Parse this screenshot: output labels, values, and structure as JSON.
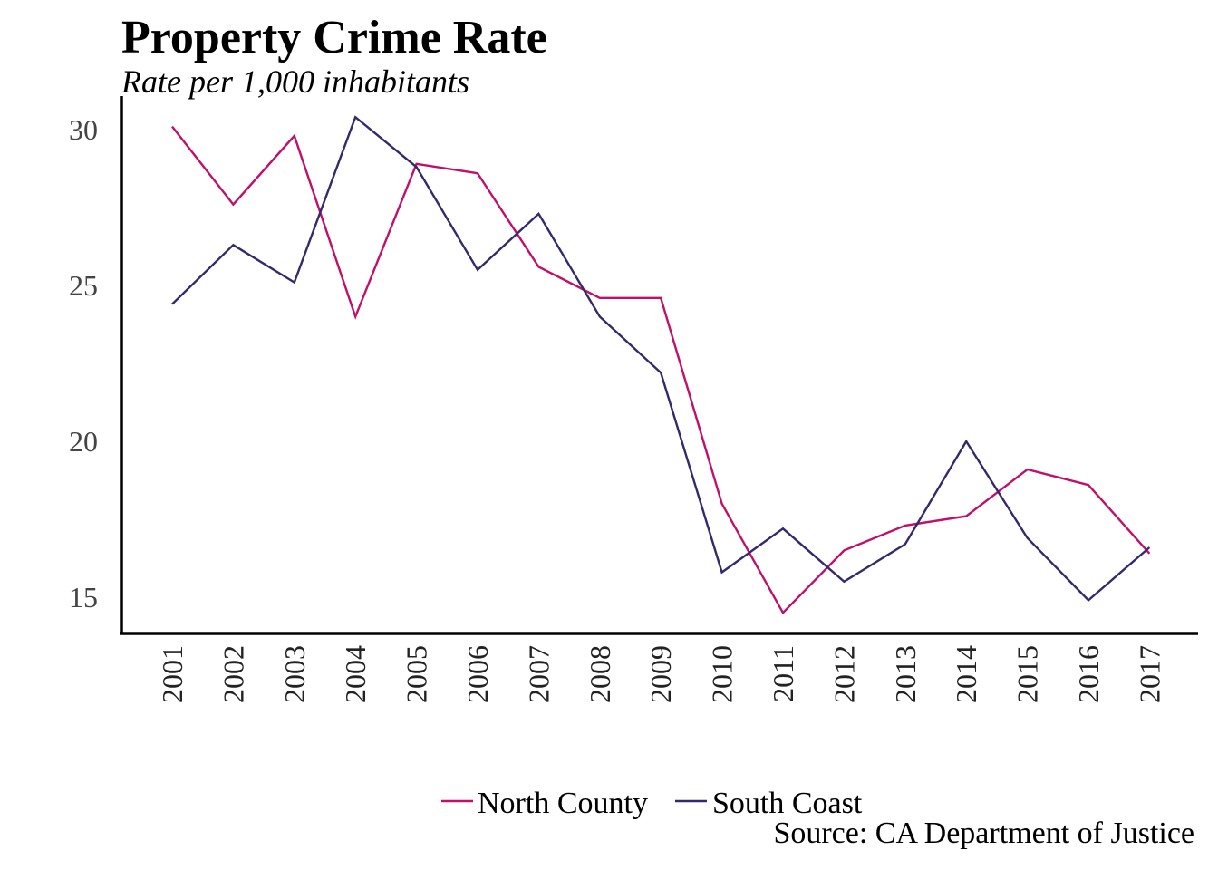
{
  "chart_data": {
    "type": "line",
    "title": "Property Crime Rate",
    "subtitle": "Rate per 1,000 inhabitants",
    "xlabel": "",
    "ylabel": "",
    "categories": [
      "2001",
      "2002",
      "2003",
      "2004",
      "2005",
      "2006",
      "2007",
      "2008",
      "2009",
      "2010",
      "2011",
      "2012",
      "2013",
      "2014",
      "2015",
      "2016",
      "2017"
    ],
    "yticks": [
      "15",
      "20",
      "25",
      "30"
    ],
    "ylim": [
      13.9,
      31.0
    ],
    "grid": false,
    "legend_position": "bottom",
    "series": [
      {
        "name": "North County",
        "color": "#c0106a",
        "values": [
          30.1,
          27.6,
          29.8,
          24.0,
          28.9,
          28.6,
          25.6,
          24.6,
          24.6,
          18.0,
          14.5,
          16.5,
          17.3,
          17.6,
          19.1,
          18.6,
          16.4
        ]
      },
      {
        "name": "South Coast",
        "color": "#35296e",
        "values": [
          24.4,
          26.3,
          25.1,
          30.4,
          28.8,
          25.5,
          27.3,
          24.0,
          22.2,
          15.8,
          17.2,
          15.5,
          16.7,
          20.0,
          16.9,
          14.9,
          16.6
        ]
      }
    ],
    "source": "Source: CA Department of Justice"
  }
}
